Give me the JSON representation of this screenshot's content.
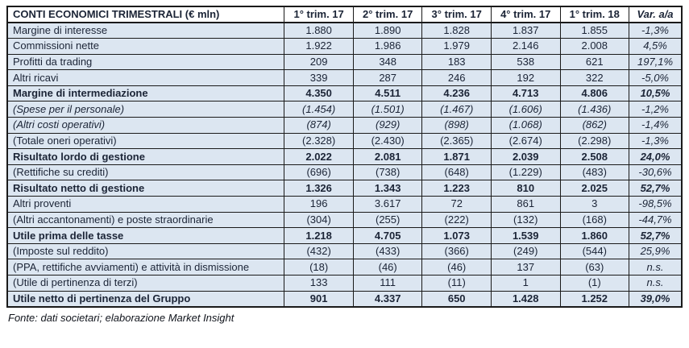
{
  "table": {
    "title": "CONTI ECONOMICI TRIMESTRALI (€ mln)",
    "columns": [
      "1° trim. 17",
      "2° trim. 17",
      "3° trim. 17",
      "4° trim. 17",
      "1° trim. 18",
      "Var. a/a"
    ],
    "rows": [
      {
        "label": "Margine di interesse",
        "values": [
          "1.880",
          "1.890",
          "1.828",
          "1.837",
          "1.855"
        ],
        "var": "-1,3%",
        "style": "normal"
      },
      {
        "label": "Commissioni nette",
        "values": [
          "1.922",
          "1.986",
          "1.979",
          "2.146",
          "2.008"
        ],
        "var": "4,5%",
        "style": "normal"
      },
      {
        "label": "Profitti da trading",
        "values": [
          "209",
          "348",
          "183",
          "538",
          "621"
        ],
        "var": "197,1%",
        "style": "normal"
      },
      {
        "label": "Altri ricavi",
        "values": [
          "339",
          "287",
          "246",
          "192",
          "322"
        ],
        "var": "-5,0%",
        "style": "normal"
      },
      {
        "label": "Margine di intermediazione",
        "values": [
          "4.350",
          "4.511",
          "4.236",
          "4.713",
          "4.806"
        ],
        "var": "10,5%",
        "style": "bold"
      },
      {
        "label": "(Spese per il personale)",
        "values": [
          "(1.454)",
          "(1.501)",
          "(1.467)",
          "(1.606)",
          "(1.436)"
        ],
        "var": "-1,2%",
        "style": "italic"
      },
      {
        "label": "(Altri costi operativi)",
        "values": [
          "(874)",
          "(929)",
          "(898)",
          "(1.068)",
          "(862)"
        ],
        "var": "-1,4%",
        "style": "italic"
      },
      {
        "label": "(Totale oneri operativi)",
        "values": [
          "(2.328)",
          "(2.430)",
          "(2.365)",
          "(2.674)",
          "(2.298)"
        ],
        "var": "-1,3%",
        "style": "normal"
      },
      {
        "label": "Risultato lordo di gestione",
        "values": [
          "2.022",
          "2.081",
          "1.871",
          "2.039",
          "2.508"
        ],
        "var": "24,0%",
        "style": "bold"
      },
      {
        "label": "(Rettifiche su crediti)",
        "values": [
          "(696)",
          "(738)",
          "(648)",
          "(1.229)",
          "(483)"
        ],
        "var": "-30,6%",
        "style": "normal"
      },
      {
        "label": "Risultato netto di gestione",
        "values": [
          "1.326",
          "1.343",
          "1.223",
          "810",
          "2.025"
        ],
        "var": "52,7%",
        "style": "bold"
      },
      {
        "label": "Altri proventi",
        "values": [
          "196",
          "3.617",
          "72",
          "861",
          "3"
        ],
        "var": "-98,5%",
        "style": "normal"
      },
      {
        "label": "(Altri accantonamenti) e poste straordinarie",
        "values": [
          "(304)",
          "(255)",
          "(222)",
          "(132)",
          "(168)"
        ],
        "var": "-44,7%",
        "style": "normal"
      },
      {
        "label": "Utile prima delle tasse",
        "values": [
          "1.218",
          "4.705",
          "1.073",
          "1.539",
          "1.860"
        ],
        "var": "52,7%",
        "style": "bold"
      },
      {
        "label": "(Imposte sul reddito)",
        "values": [
          "(432)",
          "(433)",
          "(366)",
          "(249)",
          "(544)"
        ],
        "var": "25,9%",
        "style": "normal"
      },
      {
        "label": "(PPA, rettifiche avviamenti) e attività in dismissione",
        "values": [
          "(18)",
          "(46)",
          "(46)",
          "137",
          "(63)"
        ],
        "var": "n.s.",
        "style": "normal"
      },
      {
        "label": "(Utile di pertinenza di terzi)",
        "values": [
          "133",
          "111",
          "(11)",
          "1",
          "(1)"
        ],
        "var": "n.s.",
        "style": "normal"
      },
      {
        "label": "Utile netto di pertinenza del Gruppo",
        "values": [
          "901",
          "4.337",
          "650",
          "1.428",
          "1.252"
        ],
        "var": "39,0%",
        "style": "bold"
      }
    ]
  },
  "footer": "Fonte: dati societari; elaborazione Market Insight",
  "colors": {
    "row_background": "#dce6f1",
    "header_background": "#ffffff",
    "border": "#1a1a1a",
    "text": "#1b2436"
  },
  "chart_data": {
    "type": "table",
    "title": "CONTI ECONOMICI TRIMESTRALI (€ mln)",
    "columns": [
      "1° trim. 17",
      "2° trim. 17",
      "3° trim. 17",
      "4° trim. 17",
      "1° trim. 18",
      "Var. a/a"
    ],
    "rows": [
      [
        "Margine di interesse",
        1880,
        1890,
        1828,
        1837,
        1855,
        "-1,3%"
      ],
      [
        "Commissioni nette",
        1922,
        1986,
        1979,
        2146,
        2008,
        "4,5%"
      ],
      [
        "Profitti da trading",
        209,
        348,
        183,
        538,
        621,
        "197,1%"
      ],
      [
        "Altri ricavi",
        339,
        287,
        246,
        192,
        322,
        "-5,0%"
      ],
      [
        "Margine di intermediazione",
        4350,
        4511,
        4236,
        4713,
        4806,
        "10,5%"
      ],
      [
        "(Spese per il personale)",
        -1454,
        -1501,
        -1467,
        -1606,
        -1436,
        "-1,2%"
      ],
      [
        "(Altri costi operativi)",
        -874,
        -929,
        -898,
        -1068,
        -862,
        "-1,4%"
      ],
      [
        "(Totale oneri operativi)",
        -2328,
        -2430,
        -2365,
        -2674,
        -2298,
        "-1,3%"
      ],
      [
        "Risultato lordo di gestione",
        2022,
        2081,
        1871,
        2039,
        2508,
        "24,0%"
      ],
      [
        "(Rettifiche su crediti)",
        -696,
        -738,
        -648,
        -1229,
        -483,
        "-30,6%"
      ],
      [
        "Risultato netto di gestione",
        1326,
        1343,
        1223,
        810,
        2025,
        "52,7%"
      ],
      [
        "Altri proventi",
        196,
        3617,
        72,
        861,
        3,
        "-98,5%"
      ],
      [
        "(Altri accantonamenti) e poste straordinarie",
        -304,
        -255,
        -222,
        -132,
        -168,
        "-44,7%"
      ],
      [
        "Utile prima delle tasse",
        1218,
        4705,
        1073,
        1539,
        1860,
        "52,7%"
      ],
      [
        "(Imposte sul reddito)",
        -432,
        -433,
        -366,
        -249,
        -544,
        "25,9%"
      ],
      [
        "(PPA, rettifiche avviamenti) e attività in dismissione",
        -18,
        -46,
        -46,
        137,
        -63,
        "n.s."
      ],
      [
        "(Utile di pertinenza di terzi)",
        133,
        111,
        -11,
        1,
        -1,
        "n.s."
      ],
      [
        "Utile netto di pertinenza del Gruppo",
        901,
        4337,
        650,
        1428,
        1252,
        "39,0%"
      ]
    ]
  }
}
